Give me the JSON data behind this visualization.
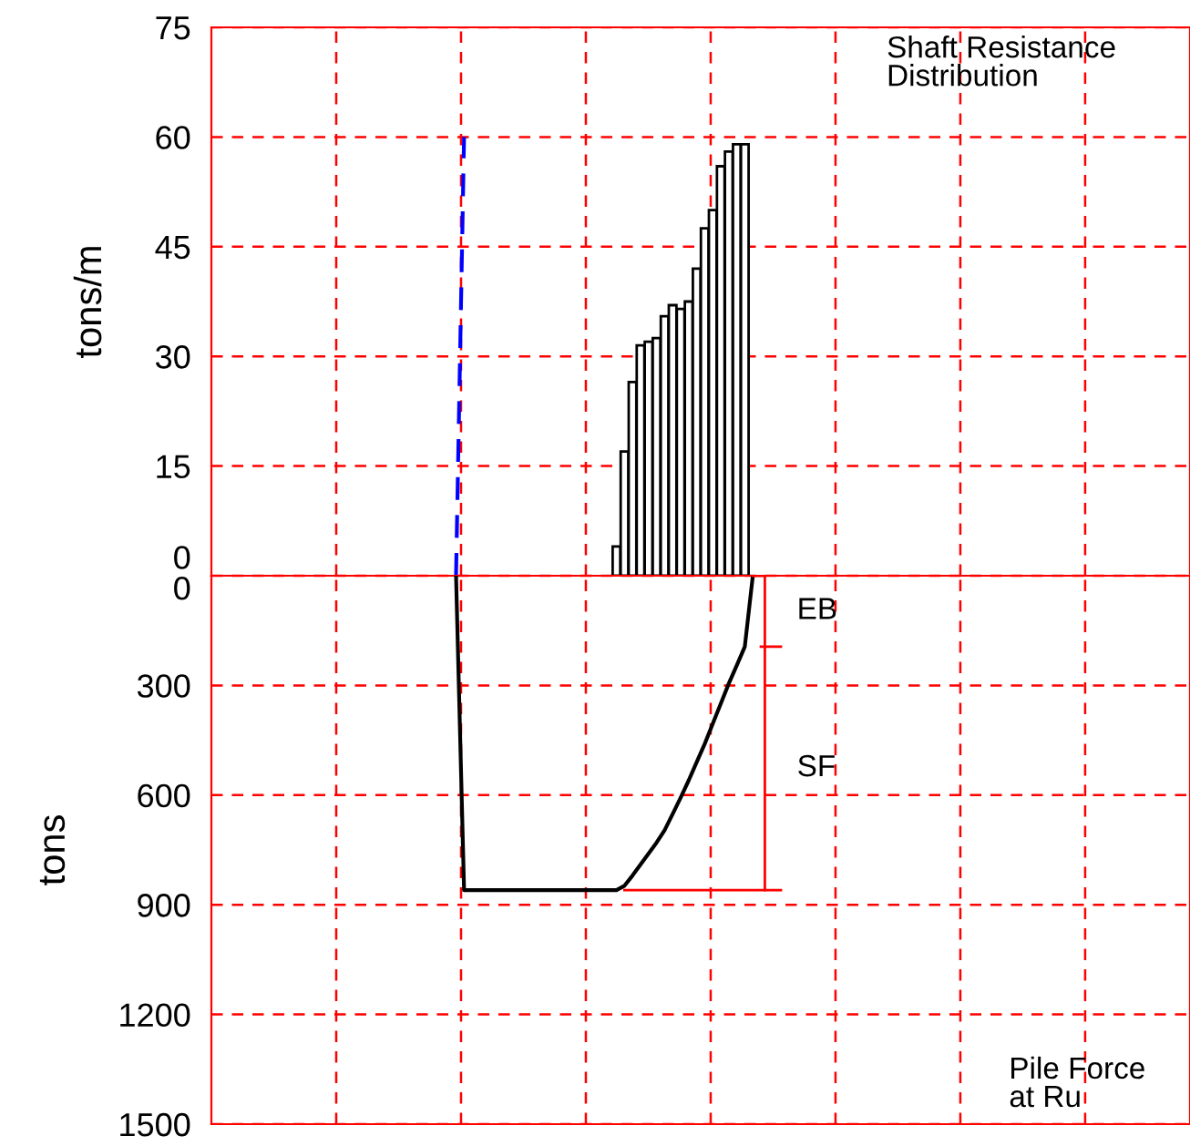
{
  "chart_data": [
    {
      "type": "bar",
      "title": "Shaft Resistance\nDistribution",
      "ylabel": "tons/m",
      "categories": [
        null,
        null,
        null,
        null,
        null,
        null,
        null,
        null,
        null,
        null,
        null,
        null,
        null,
        null,
        null,
        null,
        null,
        null,
        null,
        null,
        null,
        null,
        null,
        null,
        null,
        null,
        null,
        null,
        null,
        null,
        null,
        null,
        null,
        null,
        null,
        null,
        null,
        null,
        null,
        null,
        null,
        null,
        null,
        null,
        null,
        null,
        null,
        null,
        null,
        null,
        null,
        null,
        null,
        null,
        null,
        null,
        null,
        null,
        null,
        null,
        null,
        null,
        null,
        null,
        null,
        null,
        null,
        null,
        null,
        null,
        null,
        null,
        null,
        null,
        null,
        null,
        null,
        null,
        null,
        null,
        null,
        null,
        null,
        null,
        null,
        null,
        null,
        null,
        null,
        null,
        null,
        null,
        null,
        null,
        null,
        null,
        null,
        null,
        null,
        null,
        null,
        null,
        null,
        null,
        null,
        null,
        null,
        null,
        null,
        null,
        null,
        null,
        null,
        null,
        null,
        null,
        null,
        null,
        null,
        null,
        null,
        null
      ],
      "series": [
        {
          "type": "bar",
          "color": "#ffffff",
          "values": [
            null,
            null,
            null,
            null,
            null,
            null,
            null,
            null,
            null,
            null,
            null,
            null,
            null,
            null,
            null,
            null,
            null,
            null,
            null,
            null,
            null,
            null,
            null,
            null,
            null,
            null,
            null,
            null,
            null,
            null,
            null,
            null,
            null,
            null,
            null,
            null,
            null,
            null,
            null,
            null,
            null,
            null,
            null,
            null,
            null,
            null,
            null,
            null,
            null,
            null,
            4,
            17,
            26.5,
            31.5,
            32,
            32.5,
            35.5,
            37,
            36.5,
            37.5,
            42,
            47.5,
            50,
            56,
            58,
            59,
            59,
            null,
            null,
            null,
            null,
            null,
            null,
            null,
            null,
            null,
            null,
            null,
            null,
            null,
            null,
            null,
            null,
            null,
            null,
            null,
            null,
            null,
            null,
            null,
            null,
            null,
            null,
            null,
            null,
            null,
            null,
            null,
            null,
            null,
            null,
            null,
            null,
            null,
            null,
            null,
            null,
            null,
            null,
            null,
            null,
            null,
            null,
            null,
            null,
            null,
            null,
            null,
            null,
            null,
            null,
            null
          ]
        },
        {
          "type": "line",
          "color": "#0000ff",
          "line_style": "dashed",
          "values": [
            null,
            null,
            null,
            null,
            null,
            null,
            null,
            null,
            null,
            null,
            null,
            null,
            null,
            null,
            null,
            null,
            null,
            null,
            null,
            null,
            null,
            null,
            null,
            null,
            null,
            null,
            null,
            null,
            null,
            null,
            0,
            60,
            null,
            null,
            null,
            null,
            null,
            null,
            null,
            null,
            null,
            null,
            null,
            null,
            null,
            null,
            null,
            null,
            null,
            null,
            null,
            null,
            null,
            null,
            null,
            null,
            null,
            null,
            null,
            null,
            null,
            null,
            null,
            null,
            null,
            null,
            null,
            null,
            null,
            null,
            null,
            null,
            null,
            null,
            null,
            null,
            null,
            null,
            null,
            null,
            null,
            null,
            null,
            null,
            null,
            null,
            null,
            null,
            null,
            null,
            null,
            null,
            null,
            null,
            null,
            null,
            null,
            null,
            null,
            null,
            null,
            null,
            null,
            null,
            null,
            null,
            null,
            null,
            null,
            null,
            null,
            null,
            null,
            null,
            null,
            null,
            null,
            null,
            null,
            null,
            null,
            null
          ]
        }
      ],
      "ylim": [
        0,
        75
      ],
      "yticks": [
        0,
        15,
        30,
        45,
        60,
        75
      ],
      "grid": true
    },
    {
      "type": "line",
      "title": "Pile Force\nat Ru",
      "ylabel": "tons",
      "categories": [
        null,
        null,
        null,
        null,
        null,
        null,
        null,
        null,
        null,
        null,
        null,
        null,
        null,
        null,
        null,
        null,
        null,
        null,
        null,
        null,
        null,
        null,
        null,
        null,
        null,
        null,
        null,
        null,
        null,
        null,
        null,
        null,
        null,
        null,
        null,
        null,
        null,
        null,
        null,
        null,
        null,
        null,
        null,
        null,
        null,
        null,
        null,
        null,
        null,
        null,
        null,
        null,
        null,
        null,
        null,
        null,
        null,
        null,
        null,
        null,
        null,
        null,
        null,
        null,
        null,
        null,
        null,
        null,
        null,
        null,
        null,
        null,
        null,
        null,
        null,
        null,
        null,
        null,
        null,
        null,
        null,
        null,
        null,
        null,
        null,
        null,
        null,
        null,
        null,
        null,
        null,
        null,
        null,
        null,
        null,
        null,
        null,
        null,
        null,
        null,
        null,
        null,
        null,
        null,
        null,
        null,
        null,
        null,
        null,
        null,
        null,
        null,
        null,
        null,
        null,
        null,
        null,
        null,
        null,
        null,
        null,
        null
      ],
      "series": [
        {
          "color": "#000000",
          "line_style": "solid",
          "values": [
            null,
            null,
            null,
            null,
            null,
            null,
            null,
            null,
            null,
            null,
            null,
            null,
            null,
            null,
            null,
            null,
            null,
            null,
            null,
            null,
            null,
            null,
            null,
            null,
            null,
            null,
            null,
            null,
            null,
            null,
            0,
            860,
            860,
            860,
            860,
            860,
            860,
            860,
            860,
            860,
            860,
            860,
            860,
            860,
            860,
            860,
            860,
            860,
            860,
            860,
            860,
            848,
            820,
            790,
            760,
            730,
            696,
            652,
            607,
            560,
            510,
            460,
            405,
            350,
            295,
            245,
            194,
            0,
            null,
            null,
            null,
            null,
            null,
            null,
            null,
            null,
            null,
            null,
            null,
            null,
            null,
            null,
            null,
            null,
            null,
            null,
            null,
            null,
            null,
            null,
            null,
            null,
            null,
            null,
            null,
            null,
            null,
            null,
            null,
            null,
            null,
            null,
            null,
            null,
            null,
            null,
            null,
            null,
            null,
            null,
            null,
            null,
            null,
            null,
            null,
            null,
            null,
            null,
            null,
            null,
            null,
            null
          ]
        }
      ],
      "annotations": [
        "EB",
        "SF"
      ],
      "ylim": [
        1500,
        0
      ],
      "yticks": [
        0,
        300,
        600,
        900,
        1200,
        1500
      ],
      "grid": true
    }
  ]
}
